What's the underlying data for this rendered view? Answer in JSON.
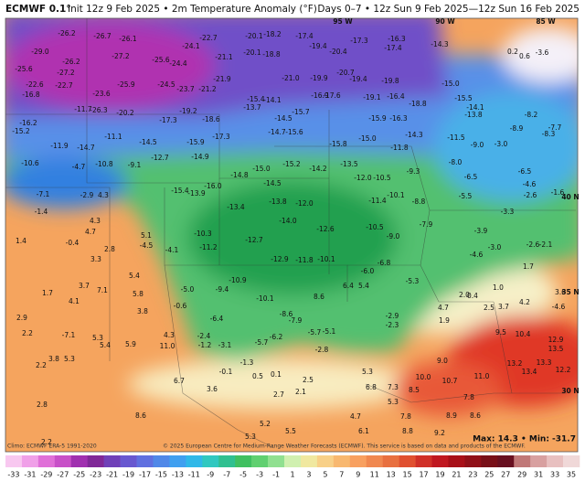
{
  "header": {
    "model": "ECMWF 0.1°",
    "subtitle": "Init 12z 9 Feb 2025 • 2m Temperature Anomaly (°F)",
    "period": "Days 0–7 • 12z Sun 9 Feb 2025—12z Sun 16 Feb 2025"
  },
  "footer": {
    "climo": "Climo: ECMWF ERA-5 1991-2020",
    "credit": "© 2025 European Centre for Medium-Range Weather Forecasts (ECMWF). This service is based on data and products of the ECMWF.",
    "maxmin": "Max: 14.3 • Min: -31.7"
  },
  "map": {
    "coords": [
      "95 W",
      "90 W",
      "85 W",
      "40 N",
      "35 N",
      "30 N"
    ],
    "labels": [
      -26.2,
      -26.7,
      -26.1,
      {
        "value": -29,
        "label": "-29.0"
      },
      -26.2,
      -27.2,
      -25.6,
      -27.2,
      -25.6,
      -24.4,
      -22.6,
      -22.7,
      -23.6,
      -25.9,
      -24.5,
      -23.7,
      -21.2,
      -16.8,
      -24.1,
      -22.7,
      -20.1,
      -18.2,
      -17.4,
      -19.4,
      -20.4,
      -17.3,
      -16.3,
      -17.4,
      -14.3,
      -21.1,
      -20.1,
      -18.8,
      -20.7,
      -21.9,
      {
        "value": -21,
        "label": "-21.0"
      },
      -19.9,
      -19.4,
      -19.8,
      {
        "value": -15,
        "label": "-15.0"
      },
      -11.7,
      -26.3,
      -20.2,
      -19.2,
      -18.6,
      -15.4,
      -14.1,
      -13.7,
      -16.9,
      -17.6,
      -19.1,
      -16.4,
      -18.8,
      -15.5,
      -14.1,
      -13.8,
      -16.2,
      -15.2,
      -11.9,
      -14.7,
      -11.1,
      -14.5,
      -17.3,
      -15.7,
      -14.5,
      -14.7,
      -15.6,
      -17.3,
      -15.9,
      -15.8,
      {
        "value": -15,
        "label": "-15.0"
      },
      -15.9,
      -16.3,
      -14.3,
      -11.5,
      -10.6,
      -4.7,
      -10.8,
      -9.1,
      -12.7,
      -14.9,
      -11.8,
      -13.5,
      -14.2,
      -15.2,
      {
        "value": -15,
        "label": "-15.0"
      },
      -14.8,
      -15.4,
      -13.9,
      {
        "value": -16,
        "label": "-16.0"
      },
      -14.5,
      {
        "value": -12,
        "label": "-12.0"
      },
      -10.5,
      -9.3,
      {
        "value": -8,
        "label": "-8.0"
      },
      {
        "value": -9,
        "label": "-9.0"
      },
      -2.9,
      4.3,
      -7.1,
      -1.4,
      4.3,
      4.7,
      -0.4,
      1.4,
      2.8,
      5.1,
      -4.5,
      -4.1,
      -13.4,
      -13.8,
      {
        "value": -12,
        "label": "-12.0"
      },
      {
        "value": -14,
        "label": "-14.0"
      },
      -12.6,
      -11.4,
      -10.1,
      -8.8,
      -7.9,
      -10.5,
      {
        "value": -9,
        "label": "-9.0"
      },
      -12.7,
      -11.2,
      -10.3,
      -12.9,
      -11.8,
      -10.1,
      {
        "value": -6,
        "label": "-6.0"
      },
      -6.8,
      -5.3,
      -2.9,
      -2.3,
      3.3,
      5.4,
      5.8,
      3.7,
      7.1,
      4.1,
      1.7,
      2.9,
      2.2,
      -7.1,
      5.3,
      5.4,
      5.9,
      4.3,
      {
        "value": 11,
        "label": "11.0"
      },
      3.8,
      -0.6,
      {
        "value": -5,
        "label": "-5.0"
      },
      -9.4,
      -10.9,
      -10.1,
      -6.4,
      -8.6,
      -7.9,
      -5.7,
      -5.1,
      8.6,
      6.4,
      5.4,
      -2.4,
      -1.2,
      -3.1,
      -5.7,
      -6.2,
      -2.8,
      -1.3,
      -0.1,
      0.5,
      0.1,
      2.5,
      6.7,
      3.6,
      2.7,
      2.1,
      5.3,
      6.8,
      7.3,
      8.5,
      {
        "value": 10,
        "label": "10.0"
      },
      10.7,
      7.8,
      {
        "value": 11,
        "label": "11.0"
      },
      13.2,
      13.4,
      13.3,
      12.2,
      12.9,
      13.5,
      10.4,
      9.5,
      {
        "value": 9,
        "label": "9.0"
      },
      5.3,
      4.7,
      6.1,
      7.8,
      8.8,
      9.2,
      8.9,
      8.6,
      5.2,
      5.3,
      5.5,
      2.8,
      2.2,
      8.6,
      3.8,
      5.3,
      2.2,
      -4.6,
      {
        "value": -3,
        "label": "-3.0"
      },
      -2.6,
      -2.1,
      1.7,
      {
        "value": 2,
        "label": "2.0"
      },
      {
        "value": 1,
        "label": "1.0"
      },
      0.4,
      2.5,
      3.7,
      4.2,
      -4.6,
      3.6,
      1.9,
      4.7,
      -3.9,
      -3.3,
      -5.5,
      -6.5,
      -6.5,
      -4.6,
      -2.6,
      -1.6,
      {
        "value": -3,
        "label": "-3.0"
      },
      0.2,
      0.6,
      -3.6,
      -8.2,
      -8.9,
      -7.7,
      -8.3
    ]
  },
  "colorbar": {
    "ticks": [
      -33,
      -31,
      -29,
      -27,
      -25,
      -23,
      -21,
      -19,
      -17,
      -15,
      -13,
      -11,
      -9,
      -7,
      -5,
      -3,
      -1,
      1,
      3,
      5,
      7,
      9,
      11,
      13,
      15,
      17,
      19,
      21,
      23,
      25,
      27,
      29,
      31,
      33,
      35
    ],
    "colors": [
      "#f8c8f0",
      "#f0a0e8",
      "#e070d8",
      "#c850c8",
      "#a030b0",
      "#802898",
      "#7040b8",
      "#6858d0",
      "#6070e0",
      "#5088e8",
      "#40a0f0",
      "#30b8e8",
      "#30c8c0",
      "#30c090",
      "#40c060",
      "#60d070",
      "#90e090",
      "#d0f0b0",
      "#f0e8a0",
      "#f8d088",
      "#f8b870",
      "#f8a060",
      "#f08850",
      "#e87040",
      "#e05030",
      "#d03028",
      "#c01820",
      "#a81018",
      "#901018",
      "#781018",
      "#681020",
      "#c07878",
      "#d8a0a0",
      "#e8c0c0",
      "#f0d8d8"
    ]
  }
}
